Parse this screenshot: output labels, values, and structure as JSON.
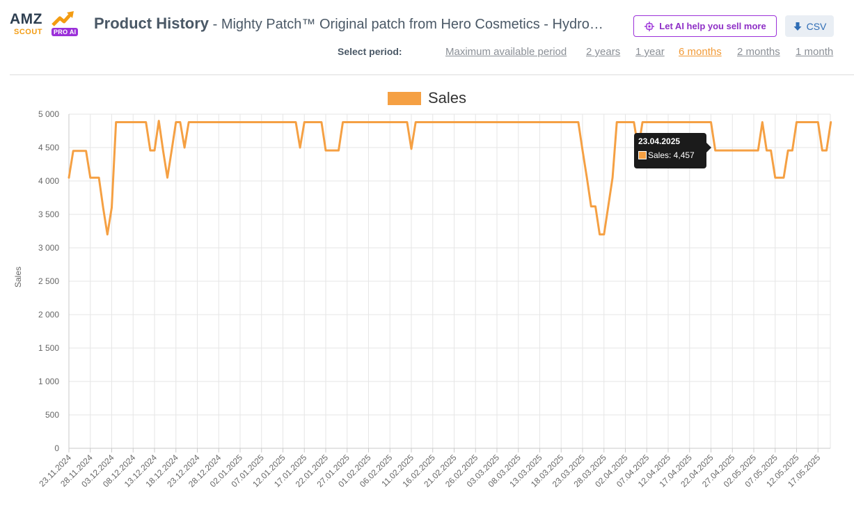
{
  "header": {
    "logo_amz": "AMZ",
    "logo_scout": "SCOUT",
    "logo_pro": "PRO AI",
    "title": "Product History",
    "separator": " - ",
    "product_name": "Mighty Patch™ Original patch from Hero Cosmetics - Hydro…",
    "ai_button_label": "Let AI help you sell more",
    "csv_button_label": "CSV"
  },
  "periods": {
    "label": "Select period:",
    "options": [
      "Maximum available period",
      "2 years",
      "1 year",
      "6 months",
      "2 months",
      "1 month"
    ],
    "active": "6 months"
  },
  "tooltip": {
    "date": "23.04.2025",
    "text": "Sales: 4,457"
  },
  "colors": {
    "series": "#f5a043",
    "accent_purple": "#9b30d9",
    "csv_blue": "#2f6db5"
  },
  "chart_data": {
    "type": "line",
    "legend_position": "top-center",
    "grid": true,
    "ylabel": "Sales",
    "xlabel": "",
    "ylim": [
      0,
      5000
    ],
    "y_ticks": [
      0,
      500,
      1000,
      1500,
      2000,
      2500,
      3000,
      3500,
      4000,
      4500,
      5000
    ],
    "y_tick_labels": [
      "0",
      "500",
      "1 000",
      "1 500",
      "2 000",
      "2 500",
      "3 000",
      "3 500",
      "4 000",
      "4 500",
      "5 000"
    ],
    "x_tick_labels": [
      "23.11.2024",
      "28.11.2024",
      "03.12.2024",
      "08.12.2024",
      "13.12.2024",
      "18.12.2024",
      "23.12.2024",
      "28.12.2024",
      "02.01.2025",
      "07.01.2025",
      "12.01.2025",
      "17.01.2025",
      "22.01.2025",
      "27.01.2025",
      "01.02.2025",
      "06.02.2025",
      "11.02.2025",
      "16.02.2025",
      "21.02.2025",
      "26.02.2025",
      "03.03.2025",
      "08.03.2025",
      "13.03.2025",
      "18.03.2025",
      "23.03.2025",
      "28.03.2025",
      "02.04.2025",
      "07.04.2025",
      "12.04.2025",
      "17.04.2025",
      "22.04.2025",
      "27.04.2025",
      "02.05.2025",
      "07.05.2025",
      "12.05.2025",
      "17.05.2025"
    ],
    "series": [
      {
        "name": "Sales",
        "points": [
          [
            "23.11.2024",
            4050
          ],
          [
            "24.11.2024",
            4450
          ],
          [
            "27.11.2024",
            4450
          ],
          [
            "28.11.2024",
            4050
          ],
          [
            "30.11.2024",
            4050
          ],
          [
            "01.12.2024",
            3600
          ],
          [
            "02.12.2024",
            3200
          ],
          [
            "03.12.2024",
            3600
          ],
          [
            "04.12.2024",
            4880
          ],
          [
            "11.12.2024",
            4880
          ],
          [
            "12.12.2024",
            4457
          ],
          [
            "13.12.2024",
            4457
          ],
          [
            "14.12.2024",
            4900
          ],
          [
            "15.12.2024",
            4457
          ],
          [
            "16.12.2024",
            4050
          ],
          [
            "17.12.2024",
            4457
          ],
          [
            "18.12.2024",
            4880
          ],
          [
            "19.12.2024",
            4880
          ],
          [
            "20.12.2024",
            4500
          ],
          [
            "21.12.2024",
            4880
          ],
          [
            "15.01.2025",
            4880
          ],
          [
            "16.01.2025",
            4500
          ],
          [
            "17.01.2025",
            4880
          ],
          [
            "21.01.2025",
            4880
          ],
          [
            "22.01.2025",
            4457
          ],
          [
            "25.01.2025",
            4457
          ],
          [
            "26.01.2025",
            4880
          ],
          [
            "10.02.2025",
            4880
          ],
          [
            "11.02.2025",
            4480
          ],
          [
            "12.02.2025",
            4880
          ],
          [
            "22.03.2025",
            4880
          ],
          [
            "23.03.2025",
            4457
          ],
          [
            "24.03.2025",
            4050
          ],
          [
            "25.03.2025",
            3620
          ],
          [
            "26.03.2025",
            3620
          ],
          [
            "27.03.2025",
            3200
          ],
          [
            "28.03.2025",
            3200
          ],
          [
            "29.03.2025",
            3620
          ],
          [
            "30.03.2025",
            4050
          ],
          [
            "31.03.2025",
            4880
          ],
          [
            "04.04.2025",
            4880
          ],
          [
            "05.04.2025",
            4480
          ],
          [
            "06.04.2025",
            4880
          ],
          [
            "22.04.2025",
            4880
          ],
          [
            "23.04.2025",
            4457
          ],
          [
            "03.05.2025",
            4457
          ],
          [
            "04.05.2025",
            4880
          ],
          [
            "05.05.2025",
            4457
          ],
          [
            "06.05.2025",
            4457
          ],
          [
            "07.05.2025",
            4050
          ],
          [
            "09.05.2025",
            4050
          ],
          [
            "10.05.2025",
            4457
          ],
          [
            "11.05.2025",
            4457
          ],
          [
            "12.05.2025",
            4880
          ],
          [
            "17.05.2025",
            4880
          ],
          [
            "18.05.2025",
            4457
          ],
          [
            "19.05.2025",
            4457
          ],
          [
            "20.05.2025",
            4880
          ]
        ]
      }
    ]
  }
}
